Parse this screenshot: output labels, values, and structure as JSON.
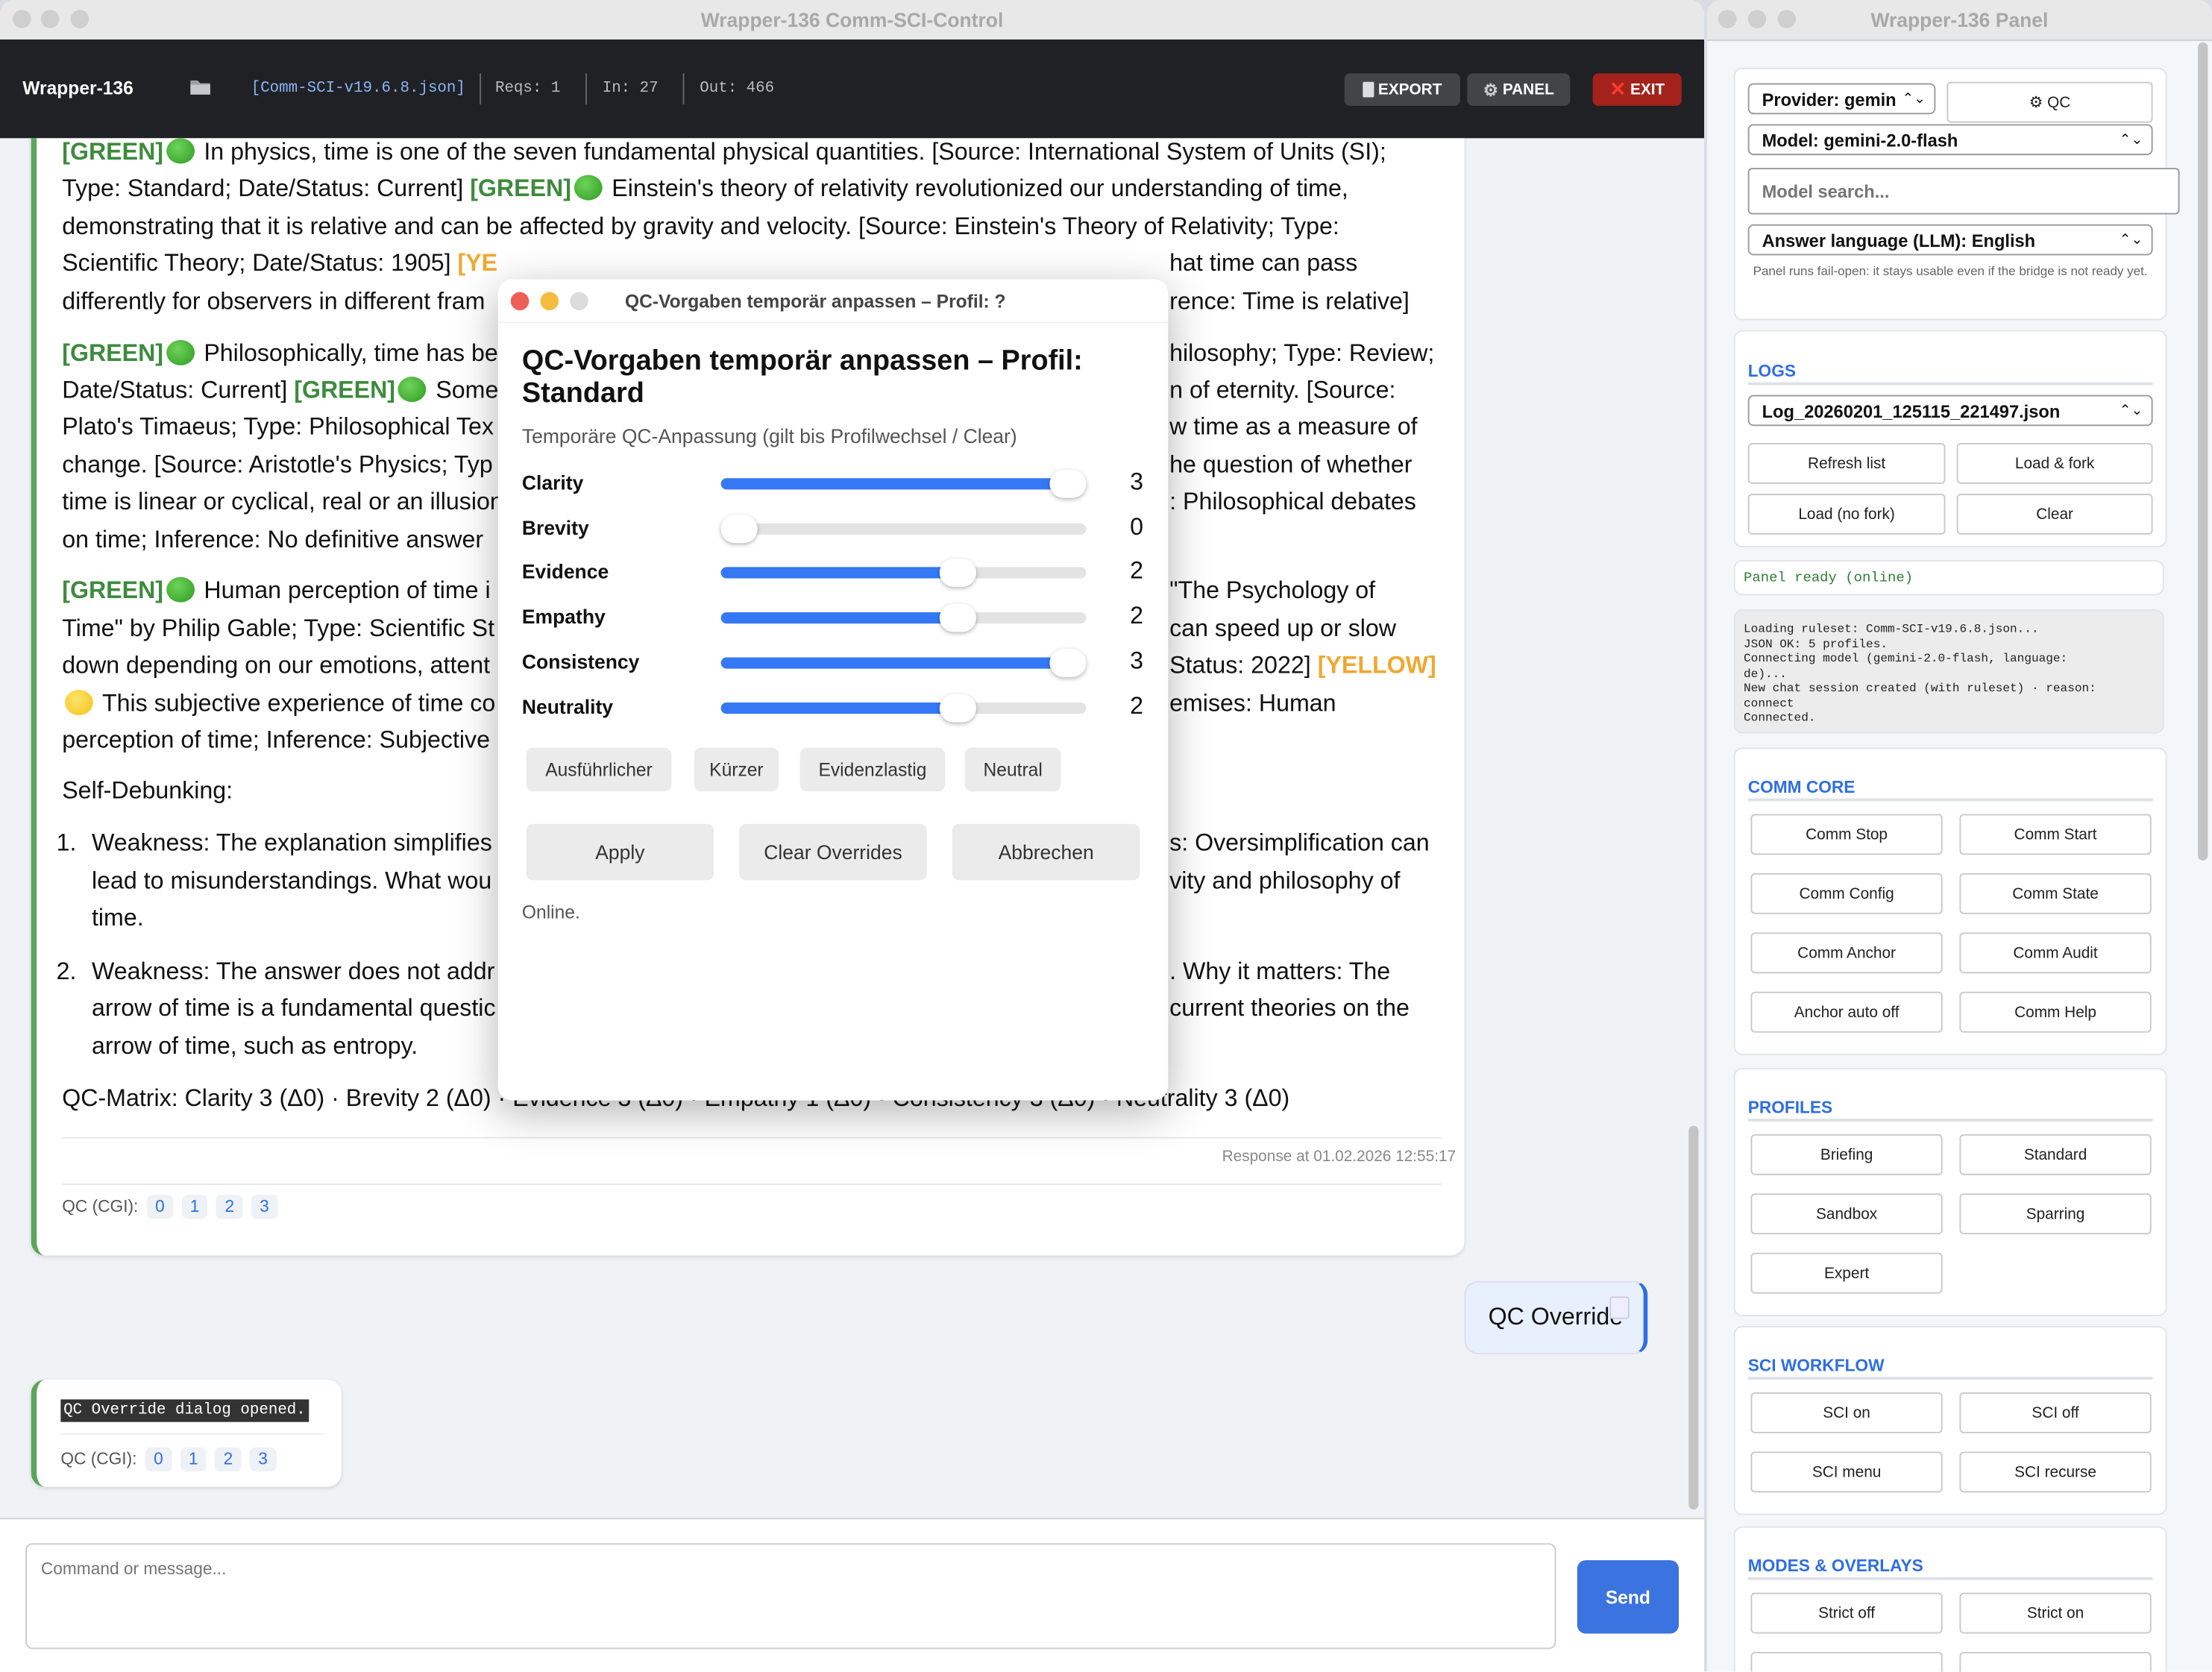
{
  "main_window": {
    "title": "Wrapper-136 Comm-SCI-Control",
    "header": {
      "app_name": "Wrapper-136",
      "folder_icon": "folder-icon",
      "ruleset_file": "[Comm-SCI-v19.6.8.json]",
      "reqs": "Reqs: 1",
      "in": "In: 27",
      "out": "Out: 466",
      "export_label": "EXPORT",
      "panel_label": "PANEL",
      "exit_label": "EXIT"
    }
  },
  "colors": {
    "green_tag": "#3d8b3d",
    "yellow_tag": "#f0a830",
    "accent": "#3478f6",
    "exit": "#a3221b",
    "send": "#3b73e0"
  },
  "chat": {
    "response_lines": [
      {
        "left": [
          {
            "t": "[GREEN]",
            "c": "g"
          },
          {
            "dot": "g"
          },
          {
            "t": " In physics, time is one of the seven fundamental physical quantities. [Source: International System of Units (SI);"
          }
        ],
        "right": ""
      },
      {
        "left": [
          {
            "t": "Type: Standard; Date/Status: Current] "
          },
          {
            "t": "[GREEN]",
            "c": "g"
          },
          {
            "dot": "g"
          },
          {
            "t": " Einstein's theory of relativity revolutionized our understanding of time,"
          }
        ],
        "right": ""
      },
      {
        "left": [
          {
            "t": "demonstrating that it is relative and can be affected by gravity and velocity. [Source: Einstein's Theory of Relativity; Type:"
          }
        ],
        "right": ""
      },
      {
        "left": [
          {
            "t": "Scientific Theory; Date/Status: 1905] "
          },
          {
            "t": "[YE",
            "c": "y"
          }
        ],
        "right": "hat time can pass"
      },
      {
        "left": [
          {
            "t": "differently for observers in different fram"
          }
        ],
        "right": "rence: Time is relative]"
      },
      {
        "gap": true,
        "left": [
          {
            "t": "[GREEN]",
            "c": "g"
          },
          {
            "dot": "g"
          },
          {
            "t": " Philosophically, time has be"
          }
        ],
        "right": "hilosophy; Type: Review;"
      },
      {
        "left": [
          {
            "t": "Date/Status: Current] "
          },
          {
            "t": "[GREEN]",
            "c": "g"
          },
          {
            "dot": "g"
          },
          {
            "t": " Some"
          }
        ],
        "right": "n of eternity. [Source:"
      },
      {
        "left": [
          {
            "t": "Plato's Timaeus; Type: Philosophical Tex"
          }
        ],
        "right": "w time as a measure of"
      },
      {
        "left": [
          {
            "t": "change. [Source: Aristotle's Physics; Typ"
          }
        ],
        "right": "he question of whether"
      },
      {
        "left": [
          {
            "t": "time is linear or cyclical, real or an illusion"
          }
        ],
        "right": ": Philosophical debates"
      },
      {
        "left": [
          {
            "t": "on time; Inference: No definitive answer"
          }
        ],
        "right": ""
      },
      {
        "gap": true,
        "left": [
          {
            "t": "[GREEN]",
            "c": "g"
          },
          {
            "dot": "g"
          },
          {
            "t": " Human perception of time i"
          }
        ],
        "right": "\"The Psychology of"
      },
      {
        "left": [
          {
            "t": "Time\" by Philip Gable; Type: Scientific St"
          }
        ],
        "right": "can speed up or slow"
      },
      {
        "left": [
          {
            "t": "down depending on our emotions, attent"
          }
        ],
        "right": "Status: 2022] ",
        "right_tag": "[YELLOW]"
      },
      {
        "left": [
          {
            "dot": "y"
          },
          {
            "t": " This subjective experience of time co"
          }
        ],
        "right": "emises: Human"
      },
      {
        "left": [
          {
            "t": "perception of time; Inference: Subjective"
          }
        ],
        "right": ""
      }
    ],
    "self_debunking_label": "Self-Debunking:",
    "debunk_items": [
      {
        "num": "1.",
        "lines": [
          {
            "left": "Weakness: The explanation simplifies",
            "right": "s: Oversimplification can"
          },
          {
            "left": "lead to misunderstandings. What wou",
            "right": "vity and philosophy of"
          },
          {
            "left": "time.",
            "right": ""
          }
        ]
      },
      {
        "num": "2.",
        "lines": [
          {
            "left": "Weakness: The answer does not addr",
            "right": ". Why it matters: The"
          },
          {
            "left": "arrow of time is a fundamental questic",
            "right": "current theories on the"
          },
          {
            "left": "arrow of time, such as entropy.",
            "right": ""
          }
        ]
      }
    ],
    "qc_matrix": "QC-Matrix: Clarity 3 (Δ0) · Brevity 2 (Δ0) · Evidence 3 (Δ0) · Empathy 1 (Δ0) · Consistency 3 (Δ0) · Neutrality 3 (Δ0)",
    "response_time": "Response at 01.02.2026 12:55:17",
    "qc_label": "QC (CGI):",
    "qc_levels": [
      "0",
      "1",
      "2",
      "3"
    ],
    "user_message": "QC Override",
    "system_message": "QC Override dialog opened.",
    "input_placeholder": "Command or message...",
    "send_label": "Send"
  },
  "dialog": {
    "window_title": "QC-Vorgaben temporär anpassen – Profil: ?",
    "heading": "QC-Vorgaben temporär anpassen – Profil: Standard",
    "subtitle": "Temporäre QC-Anpassung (gilt bis Profilwechsel / Clear)",
    "slider_max": 3,
    "sliders": [
      {
        "label": "Clarity",
        "value": 3
      },
      {
        "label": "Brevity",
        "value": 0
      },
      {
        "label": "Evidence",
        "value": 2
      },
      {
        "label": "Empathy",
        "value": 2
      },
      {
        "label": "Consistency",
        "value": 3
      },
      {
        "label": "Neutrality",
        "value": 2
      }
    ],
    "presets": [
      "Ausführlicher",
      "Kürzer",
      "Evidenzlastig",
      "Neutral"
    ],
    "apply_label": "Apply",
    "clear_label": "Clear Overrides",
    "cancel_label": "Abbrechen",
    "status": "Online."
  },
  "panel": {
    "title": "Wrapper-136 Panel",
    "provider": "Provider: gemin",
    "qc_button": "⚙ QC",
    "model": "Model: gemini-2.0-flash",
    "model_search_placeholder": "Model search...",
    "answer_language": "Answer language (LLM): English",
    "note": "Panel runs fail-open: it stays usable even if the bridge is not ready yet.",
    "logs": {
      "title": "LOGS",
      "selected_log": "Log_20260201_125115_221497.json",
      "buttons": [
        "Refresh list",
        "Load & fork",
        "Load (no fork)",
        "Clear"
      ]
    },
    "status": "Panel ready (online)",
    "log_output": "Loading ruleset: Comm-SCI-v19.6.8.json...\nJSON OK: 5 profiles.\nConnecting model (gemini-2.0-flash, language:\nde)...\nNew chat session created (with ruleset) · reason:\nconnect\nConnected.",
    "sections": [
      {
        "title": "COMM CORE",
        "buttons": [
          "Comm Stop",
          "Comm Start",
          "Comm Config",
          "Comm State",
          "Comm Anchor",
          "Comm Audit",
          "Anchor auto off",
          "Comm Help"
        ]
      },
      {
        "title": "PROFILES",
        "buttons": [
          "Briefing",
          "Standard",
          "Sandbox",
          "Sparring",
          "Expert"
        ]
      },
      {
        "title": "SCI WORKFLOW",
        "buttons": [
          "SCI on",
          "SCI off",
          "SCI menu",
          "SCI recurse"
        ]
      },
      {
        "title": "MODES & OVERLAYS",
        "buttons": [
          "Strict off",
          "Strict on",
          "",
          ""
        ]
      }
    ]
  }
}
